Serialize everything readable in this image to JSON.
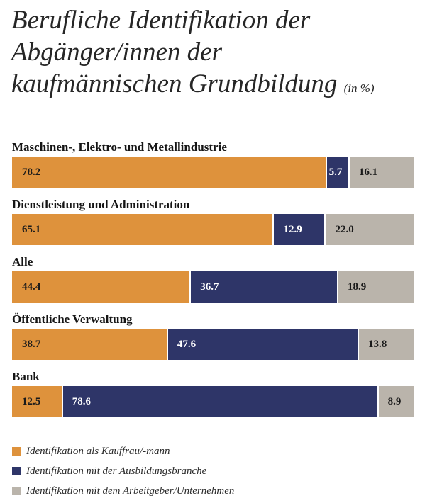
{
  "title": {
    "line1": "Berufliche Identifikation der",
    "line2": "Abgänger/innen der",
    "line3": "kaufmännischen Grundbildung",
    "unit": "(in %)"
  },
  "colors": {
    "orange": "#de923c",
    "navy": "#2e3568",
    "gray": "#bab4ab",
    "label_dark": "#1a1a1a",
    "label_light": "#ffffff"
  },
  "chart_data": {
    "type": "bar",
    "orientation": "horizontal",
    "stacked": true,
    "title": "Berufliche Identifikation der Abgänger/innen der kaufmännischen Grundbildung (in %)",
    "categories": [
      "Maschinen-, Elektro- und Metallindustrie",
      "Dienstleistung und Administration",
      "Alle",
      "Öffentliche Verwaltung",
      "Bank"
    ],
    "series": [
      {
        "name": "Identifikation als Kauffrau/-mann",
        "values": [
          78.2,
          65.1,
          44.4,
          38.7,
          12.5
        ]
      },
      {
        "name": "Identifikation mit der Ausbildungsbranche",
        "values": [
          5.7,
          12.9,
          36.7,
          47.6,
          78.6
        ]
      },
      {
        "name": "Identifikation mit dem Arbeitgeber/Unternehmen",
        "values": [
          16.1,
          22.0,
          18.9,
          13.8,
          8.9
        ]
      }
    ],
    "value_labels": [
      [
        "78.2",
        "5.7",
        "16.1"
      ],
      [
        "65.1",
        "12.9",
        "22.0"
      ],
      [
        "44.4",
        "36.7",
        "18.9"
      ],
      [
        "38.7",
        "47.6",
        "13.8"
      ],
      [
        "12.5",
        "78.6",
        "8.9"
      ]
    ],
    "xlim": [
      0,
      100
    ],
    "legend": "bottom"
  }
}
